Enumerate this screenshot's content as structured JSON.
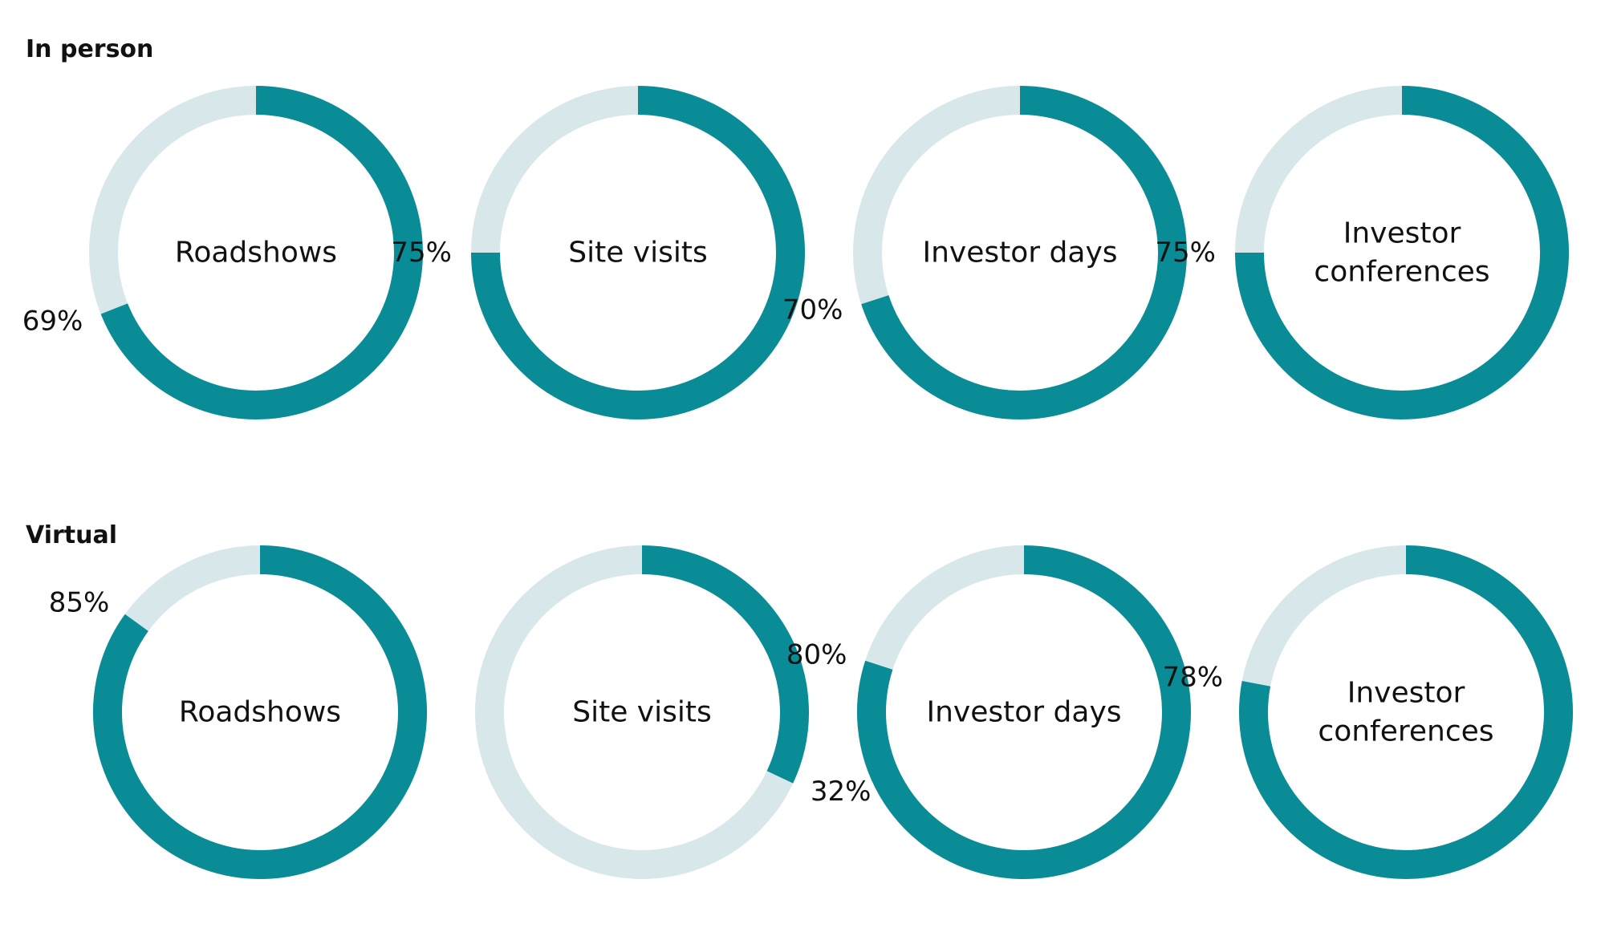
{
  "sections": [
    {
      "title": "In person"
    },
    {
      "title": "Virtual"
    }
  ],
  "colors": {
    "value": "#0a8c97",
    "track": "#d8e7ea",
    "text": "#111111"
  },
  "chart_data": [
    {
      "type": "pie",
      "group": "In person",
      "categories": [
        "Roadshows",
        "Site visits",
        "Investor days",
        "Investor conferences"
      ],
      "values": [
        69,
        75,
        70,
        75
      ],
      "value_labels": [
        "69%",
        "75%",
        "70%",
        "75%"
      ],
      "center_labels": [
        [
          "Roadshows"
        ],
        [
          "Site visits"
        ],
        [
          "Investor days"
        ],
        [
          "Investor",
          "conferences"
        ]
      ]
    },
    {
      "type": "pie",
      "group": "Virtual",
      "categories": [
        "Roadshows",
        "Site visits",
        "Investor days",
        "Investor conferences"
      ],
      "values": [
        85,
        32,
        80,
        78
      ],
      "value_labels": [
        "85%",
        "32%",
        "80%",
        "78%"
      ],
      "center_labels": [
        [
          "Roadshows"
        ],
        [
          "Site visits"
        ],
        [
          "Investor days"
        ],
        [
          "Investor",
          "conferences"
        ]
      ]
    }
  ]
}
